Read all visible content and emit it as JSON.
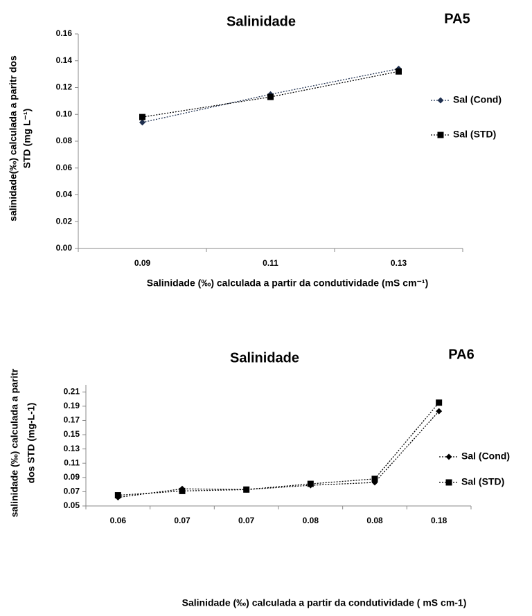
{
  "chart_data": [
    {
      "type": "line",
      "title": "Salinidade",
      "subtitle": "PA5",
      "xlabel": "Salinidade (‰) calculada a partir da condutividade (mS cm⁻¹)",
      "ylabel": [
        "salinidade(‰) calculada a paritr dos",
        "STD   (mg L⁻¹)"
      ],
      "categories": [
        "0.09",
        "0.11",
        "0.13"
      ],
      "series": [
        {
          "name": "Sal (Cond)",
          "color": "#1f3050",
          "marker": "diamond",
          "values": [
            0.094,
            0.115,
            0.134
          ]
        },
        {
          "name": "Sal (STD)",
          "color": "#000000",
          "marker": "square",
          "values": [
            0.098,
            0.113,
            0.132
          ]
        }
      ],
      "ylim": [
        0,
        0.16
      ],
      "yticks": [
        {
          "value": 0,
          "label": "0.00"
        },
        0.02,
        0.04,
        0.06,
        0.08,
        {
          "value": 0.1,
          "label": "0.10"
        },
        0.12,
        0.14,
        0.16
      ],
      "legend": "right"
    },
    {
      "type": "line",
      "title": "Salinidade",
      "subtitle": "PA6",
      "xlabel": "Salinidade (‰) calculada a partir da condutividade ( mS cm-1)",
      "ylabel": [
        "salinidade (‰) calculada a paritr",
        "dos STD (mg-L-1)"
      ],
      "categories": [
        "0.06",
        "0.07",
        "0.07",
        "0.08",
        "0.08",
        "0.18"
      ],
      "series": [
        {
          "name": "Sal (Cond)",
          "color": "#000000",
          "marker": "diamond",
          "values": [
            0.062,
            0.074,
            0.073,
            0.079,
            0.083,
            0.183
          ]
        },
        {
          "name": "Sal (STD)",
          "color": "#000000",
          "marker": "square",
          "values": [
            0.065,
            0.071,
            0.073,
            0.081,
            0.088,
            0.195
          ]
        }
      ],
      "ylim": [
        0.05,
        0.22
      ],
      "yticks": [
        0.05,
        0.07,
        0.09,
        0.11,
        0.13,
        0.15,
        0.17,
        0.19,
        0.21
      ],
      "legend": "right"
    }
  ]
}
